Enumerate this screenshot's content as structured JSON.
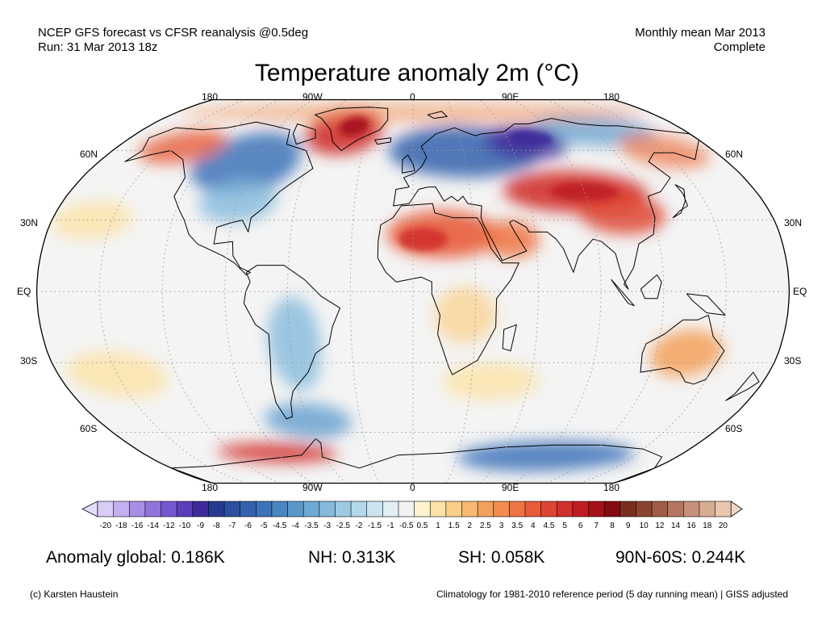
{
  "header": {
    "left_line1": "NCEP GFS forecast vs CFSR reanalysis @0.5deg",
    "left_line2": "Run: 31 Mar 2013 18z",
    "right_line1": "Monthly mean Mar 2013",
    "right_line2": "Complete"
  },
  "map": {
    "title": "Temperature anomaly 2m (°C)",
    "projection": "robinson",
    "lon_labels": [
      "180",
      "90W",
      "0",
      "90E",
      "180"
    ],
    "lat_labels": [
      "60N",
      "30N",
      "EQ",
      "30S",
      "60S"
    ],
    "colors": {
      "ocean_neutral": "#f4f4f4",
      "warm": "#e34a33",
      "cold": "#2b5fa8",
      "very_cold": "#4b2aa0",
      "outline": "#000000",
      "grid": "#999999"
    }
  },
  "colorbar": {
    "labels": [
      "-20",
      "-18",
      "-16",
      "-14",
      "-12",
      "-10",
      "-9",
      "-8",
      "-7",
      "-6",
      "-5",
      "-4.5",
      "-4",
      "-3.5",
      "-3",
      "-2.5",
      "-2",
      "-1.5",
      "-1",
      "-0.5",
      "0.5",
      "1",
      "1.5",
      "2",
      "2.5",
      "3",
      "3.5",
      "4",
      "4.5",
      "5",
      "6",
      "7",
      "8",
      "9",
      "10",
      "12",
      "14",
      "16",
      "18",
      "20"
    ],
    "colors": [
      "#d9ccf7",
      "#c2b0ef",
      "#a98ee6",
      "#9074dc",
      "#7558cf",
      "#5b3ebb",
      "#3f2a9a",
      "#263a91",
      "#2c4f9f",
      "#3461ad",
      "#3d73b8",
      "#4a86c2",
      "#5a98cb",
      "#6eaad4",
      "#85badc",
      "#9ccae4",
      "#b4d8ea",
      "#cbe4f0",
      "#e1eff6",
      "#f2f2f2",
      "#fff3cf",
      "#fde3a6",
      "#fbcf88",
      "#f8b870",
      "#f5a05b",
      "#f28b4d",
      "#ee7443",
      "#e85c3a",
      "#de4533",
      "#d1302b",
      "#bf1d24",
      "#a4121c",
      "#850a12",
      "#7a2e1e",
      "#8c4430",
      "#a05c46",
      "#b4765f",
      "#c79078",
      "#d8ab93",
      "#e8c7b0"
    ],
    "low_arrow_color": "#e4dcfa",
    "high_arrow_color": "#f2d6c4"
  },
  "stats": {
    "global": "Anomaly global: 0.186K",
    "nh": "NH: 0.313K",
    "sh": "SH: 0.058K",
    "arctic": "90N-60S: 0.244K"
  },
  "footer": {
    "credit": "(c) Karsten Haustein",
    "climatology": "Climatology for 1981-2010 reference period (5 day running mean) | GISS adjusted"
  }
}
